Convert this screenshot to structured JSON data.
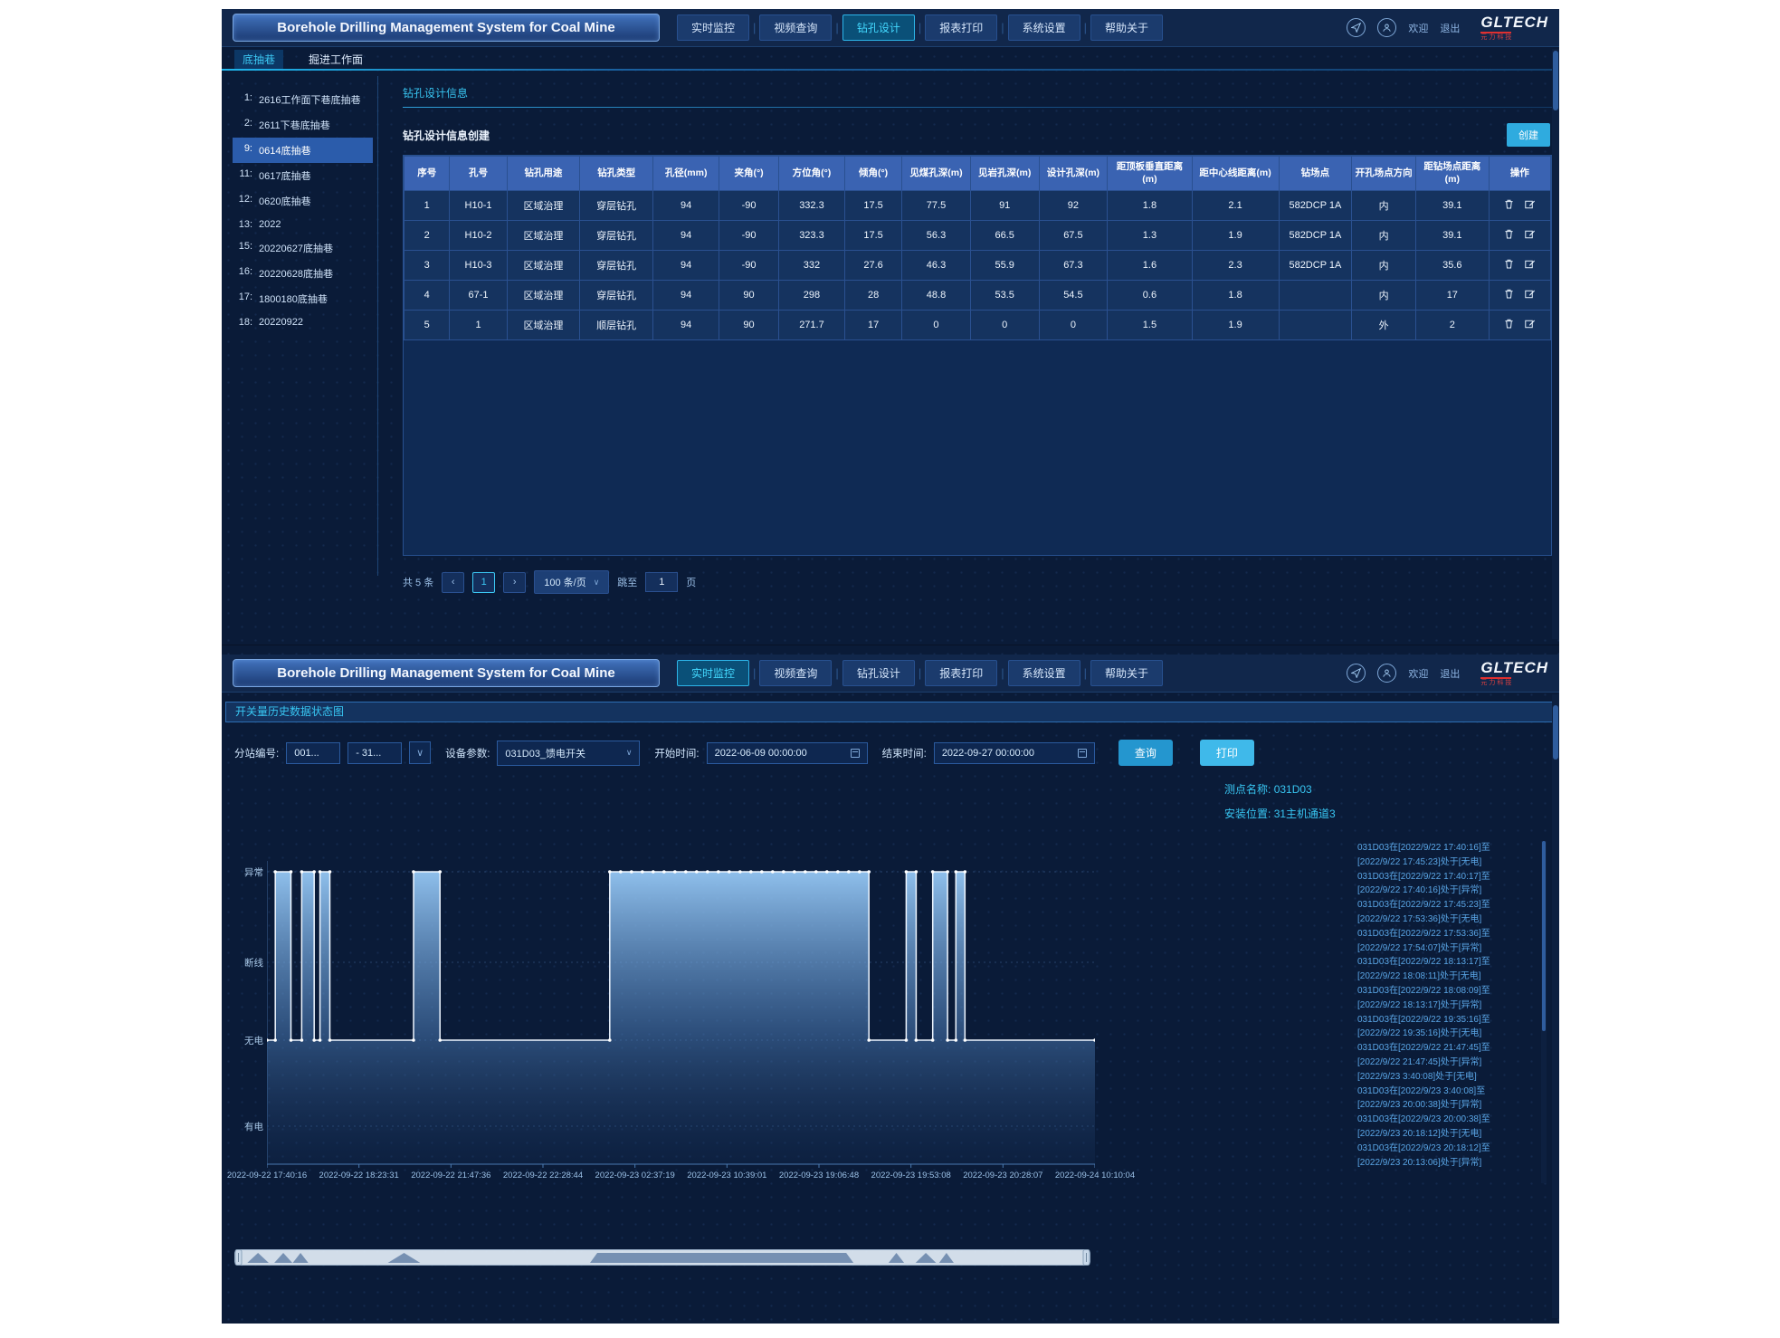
{
  "app": {
    "title": "Borehole Drilling Management System for Coal Mine",
    "logo": {
      "text": "GLTECH",
      "sub": "元力科技"
    },
    "nav": {
      "tabs": [
        "实时监控",
        "视频查询",
        "钻孔设计",
        "报表打印",
        "系统设置",
        "帮助关于"
      ],
      "welcome": "欢迎",
      "logout": "退出"
    }
  },
  "icons": {
    "chevron_down": "∨",
    "prev": "‹",
    "next": "›",
    "separator": "|"
  },
  "top_window": {
    "active_tab_index": 2,
    "subtabs": [
      {
        "label": "底抽巷",
        "active": true
      },
      {
        "label": "掘进工作面",
        "active": false
      }
    ],
    "sidebar": {
      "items": [
        {
          "no": "1:",
          "label": "2616工作面下巷底抽巷",
          "selected": false
        },
        {
          "no": "2:",
          "label": "2611下巷底抽巷",
          "selected": false
        },
        {
          "no": "9:",
          "label": "0614底抽巷",
          "selected": true
        },
        {
          "no": "11:",
          "label": "0617底抽巷",
          "selected": false
        },
        {
          "no": "12:",
          "label": "0620底抽巷",
          "selected": false
        },
        {
          "no": "13:",
          "label": "2022",
          "selected": false
        },
        {
          "no": "15:",
          "label": "20220627底抽巷",
          "selected": false
        },
        {
          "no": "16:",
          "label": "20220628底抽巷",
          "selected": false
        },
        {
          "no": "17:",
          "label": "1800180底抽巷",
          "selected": false
        },
        {
          "no": "18:",
          "label": "20220922",
          "selected": false
        }
      ]
    },
    "section_title": "钻孔设计信息",
    "create_section_title": "钻孔设计信息创建",
    "create_button": "创建",
    "table": {
      "headers": [
        "序号",
        "孔号",
        "钻孔用途",
        "钻孔类型",
        "孔径(mm)",
        "夹角(°)",
        "方位角(°)",
        "倾角(°)",
        "见煤孔深(m)",
        "见岩孔深(m)",
        "设计孔深(m)",
        "距顶板垂直距离(m)",
        "距中心线距离(m)",
        "钻场点",
        "开孔场点方向",
        "距钻场点距离(m)",
        "操作"
      ],
      "rows": [
        [
          "1",
          "H10-1",
          "区域治理",
          "穿层钻孔",
          "94",
          "-90",
          "332.3",
          "17.5",
          "77.5",
          "91",
          "92",
          "1.8",
          "2.1",
          "582DCP 1A",
          "内",
          "39.1"
        ],
        [
          "2",
          "H10-2",
          "区域治理",
          "穿层钻孔",
          "94",
          "-90",
          "323.3",
          "17.5",
          "56.3",
          "66.5",
          "67.5",
          "1.3",
          "1.9",
          "582DCP 1A",
          "内",
          "39.1"
        ],
        [
          "3",
          "H10-3",
          "区域治理",
          "穿层钻孔",
          "94",
          "-90",
          "332",
          "27.6",
          "46.3",
          "55.9",
          "67.3",
          "1.6",
          "2.3",
          "582DCP 1A",
          "内",
          "35.6"
        ],
        [
          "4",
          "67-1",
          "区域治理",
          "穿层钻孔",
          "94",
          "90",
          "298",
          "28",
          "48.8",
          "53.5",
          "54.5",
          "0.6",
          "1.8",
          "",
          "内",
          "17"
        ],
        [
          "5",
          "1",
          "区域治理",
          "顺层钻孔",
          "94",
          "90",
          "271.7",
          "17",
          "0",
          "0",
          "0",
          "1.5",
          "1.9",
          "",
          "外",
          "2"
        ]
      ]
    },
    "pagination": {
      "total": "共 5 条",
      "page": "1",
      "page_size": "100 条/页",
      "jump_label": "跳至",
      "jump_value": "1",
      "page_word": "页"
    }
  },
  "bottom_window": {
    "active_tab_index": 0,
    "section_title": "开关量历史数据状态图",
    "filters": {
      "station_label": "分站编号:",
      "station_value1": "001...",
      "station_value2": "- 31...",
      "device_label": "设备参数:",
      "device_value": "031D03_馈电开关",
      "start_label": "开始时间:",
      "start_value": "2022-06-09 00:00:00",
      "end_label": "结束时间:",
      "end_value": "2022-09-27 00:00:00",
      "query_button": "查询",
      "print_button": "打印"
    },
    "info": {
      "point_label": "测点名称:",
      "point_value": "031D03",
      "location_label": "安装位置:",
      "location_value": "31主机通道3"
    },
    "logs": [
      "031D03在[2022/9/22 17:40:16]至",
      "[2022/9/22 17:45:23]处于[无电]",
      "031D03在[2022/9/22 17:40:17]至",
      "[2022/9/22 17:40:16]处于[异常]",
      "031D03在[2022/9/22 17:45:23]至",
      "[2022/9/22 17:53:36]处于[无电]",
      "031D03在[2022/9/22 17:53:36]至",
      "[2022/9/22 17:54:07]处于[异常]",
      "031D03在[2022/9/22 18:13:17]至",
      "[2022/9/22 18:08:11]处于[无电]",
      "031D03在[2022/9/22 18:08:09]至",
      "[2022/9/22 18:13:17]处于[异常]",
      "031D03在[2022/9/22 19:35:16]至",
      "[2022/9/22 19:35:16]处于[无电]",
      "031D03在[2022/9/22 21:47:45]至",
      "[2022/9/22 21:47:45]处于[异常]",
      "[2022/9/23 3:40:08]处于[无电]",
      "031D03在[2022/9/23 3:40:08]至",
      "[2022/9/23 20:00:38]处于[异常]",
      "031D03在[2022/9/23 20:00:38]至",
      "[2022/9/23 20:18:12]处于[无电]",
      "031D03在[2022/9/23 20:18:12]至",
      "[2022/9/23 20:13:06]处于[异常]"
    ]
  },
  "chart_data": {
    "type": "area",
    "title": "开关量历史数据状态图",
    "series_name": "031D03_馈电开关",
    "y_axis": {
      "labels": [
        "异常",
        "断线",
        "无电",
        "有电"
      ]
    },
    "baseline_state": "无电",
    "pulse_state": "异常",
    "x_axis": {
      "tick_labels": [
        "2022-09-22 17:40:16",
        "2022-09-22 18:23:31",
        "2022-09-22 21:47:36",
        "2022-09-22 22:28:44",
        "2022-09-23 02:37:19",
        "2022-09-23 10:39:01",
        "2022-09-23 19:06:48",
        "2022-09-23 19:53:08",
        "2022-09-23 20:28:07",
        "2022-09-24 10:10:04"
      ]
    },
    "high_segments_pct": [
      [
        1.0,
        2.9
      ],
      [
        4.2,
        5.7
      ],
      [
        6.4,
        7.6
      ],
      [
        17.7,
        20.9
      ],
      [
        41.4,
        72.7
      ],
      [
        77.2,
        78.4
      ],
      [
        80.4,
        82.2
      ],
      [
        83.2,
        84.3
      ]
    ],
    "grid": "dotted-horizontal",
    "legend": false,
    "data_zoom": {
      "range_pct": [
        0,
        100
      ]
    }
  },
  "colors": {
    "accent_cyan": "#38c6f2",
    "table_header_blue": "#3a63b2",
    "button_cyan": "#2fabdf",
    "logo_red": "#e03030",
    "app_bg": "#0a1b38"
  }
}
